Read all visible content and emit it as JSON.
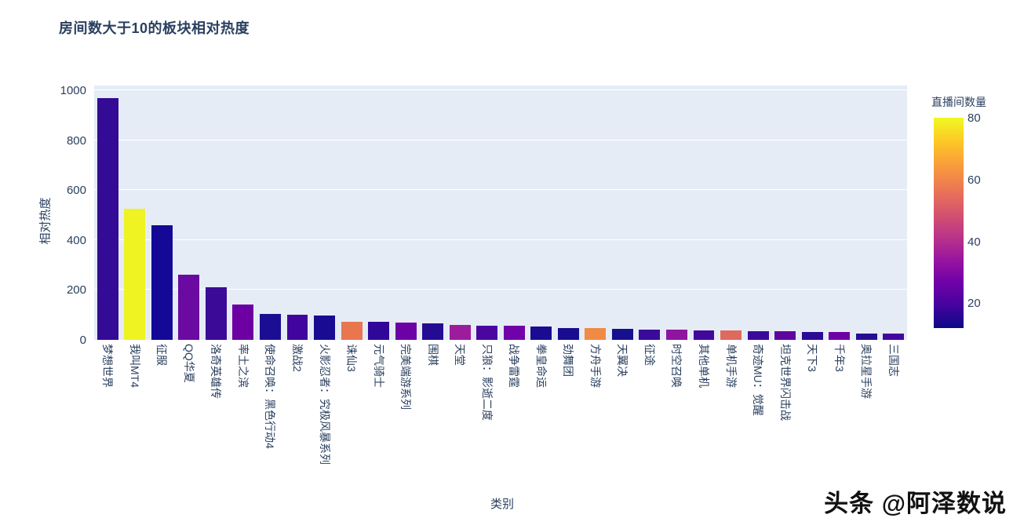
{
  "title": "房间数大于10的板块相对热度",
  "watermark": "头条 @阿泽数说",
  "chart_data": {
    "type": "bar",
    "title": "房间数大于10的板块相对热度",
    "xlabel": "类别",
    "ylabel": "相对热度",
    "ylim": [
      0,
      1020
    ],
    "yticks": [
      0,
      200,
      400,
      600,
      800,
      1000
    ],
    "grid": true,
    "plot_bg_color": "#e5ecf6",
    "grid_color": "#ffffff",
    "text_color": "#2a3f5f",
    "colorbar": {
      "title": "直播间数量",
      "ticks": [
        80,
        60,
        40,
        20
      ],
      "cmin": 12,
      "cmax": 80,
      "colorscale": [
        "#0d0887",
        "#46039f",
        "#7201a8",
        "#9c179e",
        "#bd3786",
        "#d8576b",
        "#ed7953",
        "#fa9e3b",
        "#fdc926",
        "#f0f921"
      ]
    },
    "bars": [
      {
        "label": "梦想世界",
        "value": 970,
        "rooms": 17,
        "color": "#330b94"
      },
      {
        "label": "我叫MT4",
        "value": 525,
        "rooms": 80,
        "color": "#eff321"
      },
      {
        "label": "征服",
        "value": 460,
        "rooms": 13,
        "color": "#130996"
      },
      {
        "label": "QQ华夏",
        "value": 260,
        "rooms": 25,
        "color": "#6a0aa0"
      },
      {
        "label": "洛奇英雄传",
        "value": 210,
        "rooms": 18,
        "color": "#3b0a97"
      },
      {
        "label": "率土之滨",
        "value": 143,
        "rooms": 25,
        "color": "#6c00a2"
      },
      {
        "label": "使命召唤：黑色行动4",
        "value": 105,
        "rooms": 14,
        "color": "#1c0e92"
      },
      {
        "label": "激战2",
        "value": 102,
        "rooms": 19,
        "color": "#41059e"
      },
      {
        "label": "火影忍者：究极风暴系列",
        "value": 99,
        "rooms": 13,
        "color": "#190c92"
      },
      {
        "label": "诛仙3",
        "value": 74,
        "rooms": 58,
        "color": "#e8764f"
      },
      {
        "label": "元气骑士",
        "value": 72,
        "rooms": 17,
        "color": "#31079a"
      },
      {
        "label": "完美端游系列",
        "value": 70,
        "rooms": 25,
        "color": "#6c01a5"
      },
      {
        "label": "围棋",
        "value": 67,
        "rooms": 14,
        "color": "#240b93"
      },
      {
        "label": "天堂",
        "value": 61,
        "rooms": 34,
        "color": "#9c1c9c"
      },
      {
        "label": "只狼：影逝二度",
        "value": 57,
        "rooms": 20,
        "color": "#4a07a0"
      },
      {
        "label": "战争雷霆",
        "value": 56,
        "rooms": 26,
        "color": "#7101a8"
      },
      {
        "label": "拳皇命运",
        "value": 54,
        "rooms": 13,
        "color": "#1a0b91"
      },
      {
        "label": "劲舞团",
        "value": 48,
        "rooms": 13,
        "color": "#180c90"
      },
      {
        "label": "方舟手游",
        "value": 47,
        "rooms": 61,
        "color": "#ef8b45"
      },
      {
        "label": "天翼决",
        "value": 43,
        "rooms": 12,
        "color": "#16108e"
      },
      {
        "label": "征途",
        "value": 42,
        "rooms": 18,
        "color": "#3a0a9a"
      },
      {
        "label": "时空召唤",
        "value": 40,
        "rooms": 32,
        "color": "#8f15a0"
      },
      {
        "label": "其他单机",
        "value": 39,
        "rooms": 19,
        "color": "#41089c"
      },
      {
        "label": "单机手游",
        "value": 38,
        "rooms": 54,
        "color": "#e0695e"
      },
      {
        "label": "奇迹MU：觉醒",
        "value": 36,
        "rooms": 18,
        "color": "#3c0a9b"
      },
      {
        "label": "坦克世界闪击战",
        "value": 35,
        "rooms": 23,
        "color": "#60039f"
      },
      {
        "label": "天下3",
        "value": 33,
        "rooms": 15,
        "color": "#2a0b94"
      },
      {
        "label": "千年3",
        "value": 30,
        "rooms": 25,
        "color": "#6e02a4"
      },
      {
        "label": "奥拉星手游",
        "value": 26,
        "rooms": 14,
        "color": "#250e92"
      },
      {
        "label": "三国志",
        "value": 25,
        "rooms": 19,
        "color": "#44079e"
      }
    ]
  }
}
